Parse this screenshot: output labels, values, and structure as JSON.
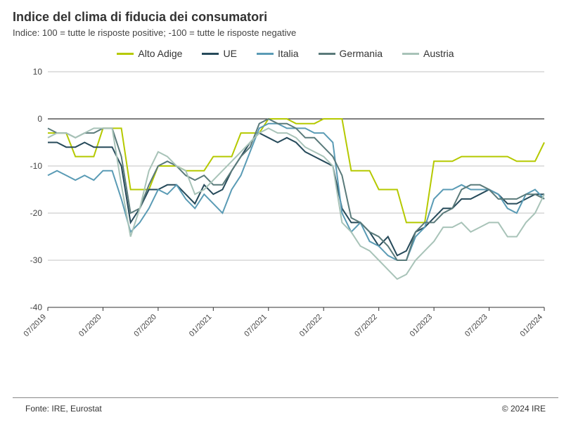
{
  "title": "Indice del clima di fiducia dei consumatori",
  "subtitle": "Indice: 100 = tutte le risposte positive; -100 =  tutte le risposte negative",
  "footer_left": "Fonte: IRE, Eurostat",
  "footer_right": "© 2024 IRE",
  "chart": {
    "type": "line",
    "background_color": "#ffffff",
    "grid_color": "#888888",
    "zero_line_color": "#333333",
    "ylabel_fontsize": 12,
    "xlabel_fontsize": 11,
    "ylim": [
      -40,
      10
    ],
    "ytick_step": 10,
    "yticks": [
      -40,
      -30,
      -20,
      -10,
      0,
      10
    ],
    "x_categories": [
      "07/2019",
      "08/2019",
      "09/2019",
      "10/2019",
      "11/2019",
      "12/2019",
      "01/2020",
      "02/2020",
      "03/2020",
      "04/2020",
      "05/2020",
      "06/2020",
      "07/2020",
      "08/2020",
      "09/2020",
      "10/2020",
      "11/2020",
      "12/2020",
      "01/2021",
      "02/2021",
      "03/2021",
      "04/2021",
      "05/2021",
      "06/2021",
      "07/2021",
      "08/2021",
      "09/2021",
      "10/2021",
      "11/2021",
      "12/2021",
      "01/2022",
      "02/2022",
      "03/2022",
      "04/2022",
      "05/2022",
      "06/2022",
      "07/2022",
      "08/2022",
      "09/2022",
      "10/2022",
      "11/2022",
      "12/2022",
      "01/2023",
      "02/2023",
      "03/2023",
      "04/2023",
      "05/2023",
      "06/2023",
      "07/2023",
      "08/2023",
      "09/2023",
      "10/2023",
      "11/2023",
      "12/2023",
      "01/2024"
    ],
    "x_tick_labels": [
      "07/2019",
      "01/2020",
      "07/2020",
      "01/2021",
      "07/2021",
      "01/2022",
      "07/2022",
      "01/2023",
      "07/2023",
      "01/2024"
    ],
    "x_tick_indices": [
      0,
      6,
      12,
      18,
      24,
      30,
      36,
      42,
      48,
      54
    ],
    "line_width": 2,
    "legend_position": "top-center",
    "series": [
      {
        "name": "Alto Adige",
        "color": "#b5c900",
        "values": [
          -3,
          -3,
          -3,
          -8,
          -8,
          -8,
          -2,
          -2,
          -2,
          -15,
          -15,
          -15,
          -10,
          -10,
          -10,
          -11,
          -11,
          -11,
          -8,
          -8,
          -8,
          -3,
          -3,
          -3,
          0,
          0,
          0,
          -1,
          -1,
          -1,
          0,
          0,
          0,
          -11,
          -11,
          -11,
          -15,
          -15,
          -15,
          -22,
          -22,
          -22,
          -9,
          -9,
          -9,
          -8,
          -8,
          -8,
          -8,
          -8,
          -8,
          -9,
          -9,
          -9,
          -5
        ]
      },
      {
        "name": "UE",
        "color": "#264a5a",
        "values": [
          -5,
          -5,
          -6,
          -6,
          -5,
          -6,
          -6,
          -6,
          -10,
          -22,
          -19,
          -15,
          -15,
          -14,
          -14,
          -16,
          -18,
          -14,
          -16,
          -15,
          -11,
          -8,
          -5,
          -3,
          -4,
          -5,
          -4,
          -5,
          -7,
          -8,
          -9,
          -10,
          -19,
          -22,
          -22,
          -24,
          -27,
          -25,
          -29,
          -28,
          -24,
          -23,
          -21,
          -19,
          -19,
          -17,
          -17,
          -16,
          -15,
          -16,
          -18,
          -18,
          -17,
          -16,
          -16
        ]
      },
      {
        "name": "Italia",
        "color": "#5a9bb5",
        "values": [
          -12,
          -11,
          -12,
          -13,
          -12,
          -13,
          -11,
          -11,
          -17,
          -24,
          -22,
          -19,
          -15,
          -16,
          -14,
          -17,
          -19,
          -16,
          -18,
          -20,
          -15,
          -12,
          -7,
          -2,
          -1,
          -1,
          -2,
          -2,
          -2,
          -3,
          -3,
          -5,
          -20,
          -24,
          -22,
          -26,
          -27,
          -29,
          -30,
          -30,
          -25,
          -23,
          -17,
          -15,
          -15,
          -14,
          -15,
          -15,
          -15,
          -16,
          -19,
          -20,
          -16,
          -15,
          -17
        ]
      },
      {
        "name": "Germania",
        "color": "#5a7a7a",
        "values": [
          -2,
          -3,
          -3,
          -4,
          -3,
          -3,
          -2,
          -2,
          -8,
          -20,
          -19,
          -14,
          -10,
          -9,
          -10,
          -12,
          -13,
          -12,
          -14,
          -14,
          -11,
          -8,
          -6,
          -1,
          0,
          -1,
          -1,
          -2,
          -4,
          -4,
          -6,
          -8,
          -12,
          -21,
          -22,
          -24,
          -25,
          -27,
          -30,
          -30,
          -24,
          -22,
          -22,
          -20,
          -19,
          -15,
          -14,
          -14,
          -15,
          -17,
          -17,
          -17,
          -16,
          -16,
          -17
        ]
      },
      {
        "name": "Austria",
        "color": "#a8c3b8",
        "values": [
          -4,
          -3,
          -3,
          -4,
          -3,
          -2,
          -2,
          -2,
          -14,
          -25,
          -19,
          -11,
          -7,
          -8,
          -10,
          -11,
          -16,
          -15,
          -13,
          -11,
          -9,
          -7,
          -5,
          -3,
          -2,
          -3,
          -3,
          -4,
          -6,
          -7,
          -8,
          -10,
          -22,
          -24,
          -27,
          -28,
          -30,
          -32,
          -34,
          -33,
          -30,
          -28,
          -26,
          -23,
          -23,
          -22,
          -24,
          -23,
          -22,
          -22,
          -25,
          -25,
          -22,
          -20,
          -16
        ]
      }
    ]
  }
}
